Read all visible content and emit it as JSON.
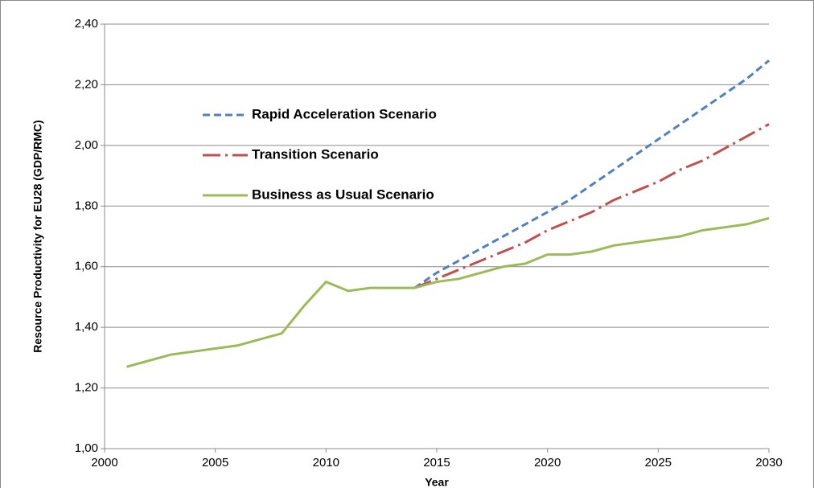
{
  "chart_data": {
    "type": "line",
    "xlabel": "Year",
    "ylabel": "Resource Productivity for EU28 (GDP/RMC)",
    "x": [
      2001,
      2002,
      2003,
      2004,
      2005,
      2006,
      2007,
      2008,
      2009,
      2010,
      2011,
      2012,
      2013,
      2014,
      2015,
      2016,
      2017,
      2018,
      2019,
      2020,
      2021,
      2022,
      2023,
      2024,
      2025,
      2026,
      2027,
      2028,
      2029,
      2030
    ],
    "series": [
      {
        "name": "Rapid Acceleration Scenario",
        "color": "#4f81bd",
        "dash": "dash",
        "values": [
          null,
          null,
          null,
          null,
          null,
          null,
          null,
          null,
          null,
          null,
          null,
          null,
          null,
          1.53,
          1.58,
          1.62,
          1.66,
          1.7,
          1.74,
          1.78,
          1.82,
          1.87,
          1.92,
          1.97,
          2.02,
          2.07,
          2.12,
          2.17,
          2.22,
          2.28
        ]
      },
      {
        "name": "Transition Scenario",
        "color": "#c0504d",
        "dash": "dashdot",
        "values": [
          null,
          null,
          null,
          null,
          null,
          null,
          null,
          null,
          null,
          null,
          null,
          null,
          null,
          1.53,
          1.56,
          1.59,
          1.62,
          1.65,
          1.68,
          1.72,
          1.75,
          1.78,
          1.82,
          1.85,
          1.88,
          1.92,
          1.95,
          1.99,
          2.03,
          2.07
        ]
      },
      {
        "name": "Business as Usual Scenario",
        "color": "#9bbb59",
        "dash": "solid",
        "values": [
          1.27,
          1.29,
          1.31,
          1.32,
          1.33,
          1.34,
          1.36,
          1.38,
          1.47,
          1.55,
          1.52,
          1.53,
          1.53,
          1.53,
          1.55,
          1.56,
          1.58,
          1.6,
          1.61,
          1.64,
          1.64,
          1.65,
          1.67,
          1.68,
          1.69,
          1.7,
          1.72,
          1.73,
          1.74,
          1.76
        ]
      }
    ],
    "xlim": [
      2000,
      2030
    ],
    "xticks": [
      2000,
      2005,
      2010,
      2015,
      2020,
      2025,
      2030
    ],
    "ylim": [
      1.0,
      2.4
    ],
    "yticks": [
      {
        "value": 1.0,
        "label": "1,00"
      },
      {
        "value": 1.2,
        "label": "1,20"
      },
      {
        "value": 1.4,
        "label": "1,40"
      },
      {
        "value": 1.6,
        "label": "1,60"
      },
      {
        "value": 1.8,
        "label": "1,80"
      },
      {
        "value": 2.0,
        "label": "2,00"
      },
      {
        "value": 2.2,
        "label": "2,20"
      },
      {
        "value": 2.4,
        "label": "2,40"
      }
    ],
    "grid": true
  }
}
